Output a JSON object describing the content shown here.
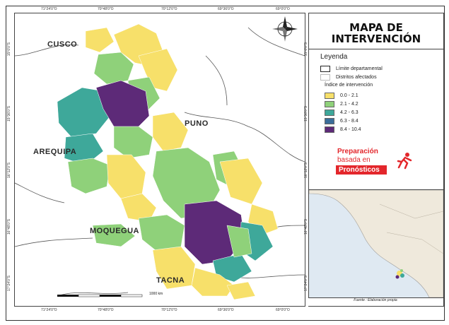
{
  "map": {
    "title_line1": "MAPA DE",
    "title_line2": "INTERVENCIÓN",
    "departments": {
      "cusco": "CUSCO",
      "arequipa": "AREQUIPA",
      "puno": "PUNO",
      "moquegua": "MOQUEGUA",
      "tacna": "TACNA"
    },
    "coords_top": [
      "71°24'0\"O",
      "70°48'0\"O",
      "70°12'0\"O",
      "69°36'0\"O",
      "69°0'0\"O"
    ],
    "coords_left": [
      "15°0'0\"S",
      "15°36'0\"S",
      "16°12'0\"S",
      "16°48'0\"S",
      "17°24'0\"S"
    ],
    "scale_label": "1000 km",
    "source": "Fuente : Elaboración propia"
  },
  "legend": {
    "title": "Leyenda",
    "boundary_label": "Límite departamental",
    "districts_label": "Distritos afectados",
    "index_label": "Índice de intervención",
    "classes": [
      {
        "label": "0.0 - 2.1",
        "color": "#f7e06a"
      },
      {
        "label": "2.1 - 4.2",
        "color": "#8fd17a"
      },
      {
        "label": "4.2 - 6.3",
        "color": "#3ea89a"
      },
      {
        "label": "6.3 - 8.4",
        "color": "#3b6e9a"
      },
      {
        "label": "8.4 - 10.4",
        "color": "#5d2a78"
      }
    ]
  },
  "logo": {
    "line1": "Preparación",
    "line2": "basada en",
    "line3": "Pronósticos"
  }
}
